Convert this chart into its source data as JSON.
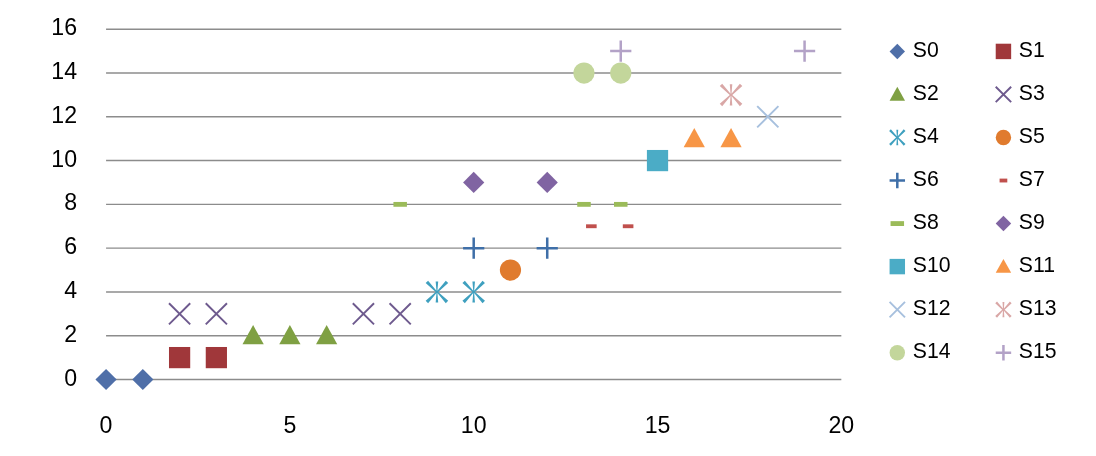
{
  "chart_data": {
    "type": "scatter",
    "xlim": [
      0,
      20
    ],
    "ylim": [
      0,
      16
    ],
    "xticks": [
      0,
      5,
      10,
      15,
      20
    ],
    "yticks": [
      0,
      2,
      4,
      6,
      8,
      10,
      12,
      14,
      16
    ],
    "grid": "y",
    "legend": "right",
    "series": [
      {
        "name": "S0",
        "color": "#4f6fa8",
        "marker": "diamond",
        "x": [
          0,
          1
        ],
        "values": [
          0,
          0
        ]
      },
      {
        "name": "S1",
        "color": "#a0373a",
        "marker": "square",
        "x": [
          2,
          3
        ],
        "values": [
          1,
          1
        ]
      },
      {
        "name": "S2",
        "color": "#7fa043",
        "marker": "triangle",
        "x": [
          4,
          5,
          6
        ],
        "values": [
          2,
          2,
          2
        ]
      },
      {
        "name": "S3",
        "color": "#6e5a8e",
        "marker": "cross",
        "x": [
          2,
          3,
          7,
          8
        ],
        "values": [
          3,
          3,
          3,
          3
        ]
      },
      {
        "name": "S4",
        "color": "#3fa0bf",
        "marker": "cross",
        "x": [
          9,
          10
        ],
        "values": [
          4,
          4
        ]
      },
      {
        "name": "S5",
        "color": "#e07b2e",
        "marker": "circle",
        "x": [
          11
        ],
        "values": [
          5
        ]
      },
      {
        "name": "S6",
        "color": "#3f6fa8",
        "marker": "cross",
        "x": [
          10,
          12
        ],
        "values": [
          6,
          6
        ]
      },
      {
        "name": "S7",
        "color": "#c0504d",
        "marker": "square",
        "x": [
          13.2,
          14.2
        ],
        "values": [
          7,
          7
        ]
      },
      {
        "name": "S8",
        "color": "#9bbb59",
        "marker": "square",
        "x": [
          8,
          13,
          14
        ],
        "values": [
          8,
          8,
          8
        ]
      },
      {
        "name": "S9",
        "color": "#8064a2",
        "marker": "diamond",
        "x": [
          10,
          12
        ],
        "values": [
          9,
          9
        ]
      },
      {
        "name": "S10",
        "color": "#4bacc6",
        "marker": "square",
        "x": [
          15
        ],
        "values": [
          10
        ]
      },
      {
        "name": "S11",
        "color": "#f79646",
        "marker": "triangle",
        "x": [
          16,
          17
        ],
        "values": [
          11,
          11
        ]
      },
      {
        "name": "S12",
        "color": "#a7c0de",
        "marker": "cross",
        "x": [
          18
        ],
        "values": [
          12
        ]
      },
      {
        "name": "S13",
        "color": "#d9a7a6",
        "marker": "cross",
        "x": [
          17
        ],
        "values": [
          13
        ]
      },
      {
        "name": "S14",
        "color": "#c3d69b",
        "marker": "circle",
        "x": [
          13,
          14
        ],
        "values": [
          14,
          14
        ]
      },
      {
        "name": "S15",
        "color": "#b3a2c7",
        "marker": "cross",
        "x": [
          14,
          19
        ],
        "values": [
          15,
          15
        ]
      }
    ]
  }
}
